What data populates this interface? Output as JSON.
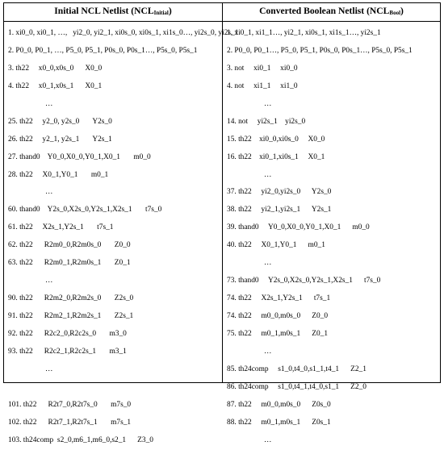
{
  "headers": {
    "left_main": "Initial NCL Netlist (NCL",
    "left_sub": "Initial",
    "left_close": ")",
    "right_main": "Converted Boolean Netlist (NCL",
    "right_sub": "Bool",
    "right_close": ")"
  },
  "left_lines": [
    "1. xi0_0, xi0_1, …,   yi2_0, yi2_1, xi0s_0, xi0s_1, xi1s_0…, yi2s_0, yi2s_1",
    "2. P0_0, P0_1, …, P5_0, P5_1, P0s_0, P0s_1…, P5s_0, P5s_1",
    "3. th22     x0_0,x0s_0      X0_0",
    "4. th22     x0_1,x0s_1      X0_1",
    "…",
    "25. th22     y2_0, y2s_0       Y2s_0",
    "26. th22     y2_1, y2s_1       Y2s_1",
    "27. thand0    Y0_0,X0_0,Y0_1,X0_1       m0_0",
    "28. th22     X0_1,Y0_1       m0_1",
    "…",
    "60. thand0    Y2s_0,X2s_0,Y2s_1,X2s_1       t7s_0",
    "61. th22     X2s_1,Y2s_1       t7s_1",
    "62. th22      R2m0_0,R2m0s_0       Z0_0",
    "63. th22      R2m0_1,R2m0s_1       Z0_1",
    "…",
    "90. th22      R2m2_0,R2m2s_0       Z2s_0",
    "91. th22      R2m2_1,R2m2s_1       Z2s_1",
    "92. th22      R2c2_0,R2c2s_0       m3_0",
    "93. th22      R2c2_1,R2c2s_1       m3_1",
    "…",
    "",
    "101. th22      R2t7_0,R2t7s_0       m7s_0",
    "102. th22      R2t7_1,R2t7s_1       m7s_1",
    "103. th24comp  s2_0,m6_1,m6_0,s2_1      Z3_0"
  ],
  "right_lines": [
    "1. xi0_1, xi1_1…, yi2_1, xi0s_1, xi1s_1…, yi2s_1",
    "2. P0_0, P0_1…, P5_0, P5_1, P0s_0, P0s_1…, P5s_0, P5s_1",
    "3. not     xi0_1     xi0_0",
    "4. not     xi1_1     xi1_0",
    "…",
    "14. not     yi2s_1    yi2s_0",
    "15. th22    xi0_0,xi0s_0     X0_0",
    "16. th22    xi0_1,xi0s_1     X0_1",
    "…",
    "37. th22     yi2_0,yi2s_0      Y2s_0",
    "38. th22     yi2_1,yi2s_1      Y2s_1",
    "39. thand0     Y0_0,X0_0,Y0_1,X0_1      m0_0",
    "40. th22     X0_1,Y0_1      m0_1",
    "…",
    "73. thand0     Y2s_0,X2s_0,Y2s_1,X2s_1      t7s_0",
    "74. th22     X2s_1,Y2s_1      t7s_1",
    "74. th22     m0_0,m0s_0      Z0_0",
    "75. th22     m0_1,m0s_1      Z0_1",
    "…",
    "85. th24comp     s1_0,t4_0,s1_1,t4_1      Z2_1",
    "86. th24comp     s1_0,t4_1,t4_0,s1_1      Z2_0",
    "87. th22     m0_0,m0s_0      Z0s_0",
    "88. th22     m0_1,m0s_1      Z0s_1",
    "…"
  ]
}
